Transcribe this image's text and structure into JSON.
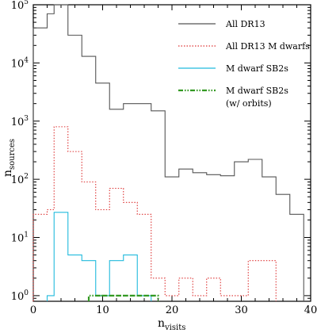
{
  "chart_data": {
    "type": "histogram",
    "xlabel": "n",
    "xlabel_sub": "visits",
    "ylabel": "n",
    "ylabel_sub": "sources",
    "xlim": [
      0,
      40
    ],
    "ylim": [
      0.8,
      100000
    ],
    "y_scale": "log",
    "x_ticks": [
      0,
      10,
      20,
      30,
      40
    ],
    "x_tick_labels": [
      "0",
      "10",
      "20",
      "30",
      "40"
    ],
    "y_ticks": [
      1,
      10,
      100,
      1000,
      10000,
      100000
    ],
    "y_tick_labels": [
      "10",
      "10",
      "10",
      "10",
      "10",
      "10"
    ],
    "y_tick_exponents": [
      "0",
      "1",
      "2",
      "3",
      "4",
      "5"
    ],
    "grid": false,
    "legend_position": "top-right",
    "series": [
      {
        "name": "All DR13",
        "style": "solid",
        "color": "#555555",
        "edges": [
          0,
          1,
          2,
          3,
          4,
          5,
          6,
          7,
          8,
          9,
          10,
          11,
          12,
          13,
          14,
          15,
          16,
          17,
          18,
          19,
          20,
          21,
          22,
          23,
          24,
          25,
          26,
          27,
          28,
          29,
          30,
          31,
          32,
          33,
          34,
          35,
          36,
          37,
          38,
          39
        ],
        "values": [
          40000,
          40000,
          70000,
          100000,
          100000,
          30000,
          30000,
          13000,
          13000,
          4500,
          4500,
          1600,
          1600,
          2000,
          2000,
          2000,
          2000,
          1500,
          1500,
          110,
          110,
          150,
          150,
          130,
          130,
          120,
          120,
          115,
          115,
          200,
          200,
          220,
          220,
          110,
          110,
          55,
          55,
          25,
          25
        ]
      },
      {
        "name": "All DR13 M dwarfs",
        "style": "dotted",
        "color": "#dd3333",
        "edges": [
          0,
          1,
          2,
          3,
          4,
          5,
          6,
          7,
          8,
          9,
          10,
          11,
          12,
          13,
          14,
          15,
          16,
          17,
          18,
          19,
          20,
          21,
          22,
          23,
          24,
          25,
          26,
          27,
          28,
          29,
          30,
          31,
          32,
          33,
          34,
          35
        ],
        "values": [
          25,
          25,
          30,
          800,
          800,
          300,
          300,
          90,
          90,
          30,
          30,
          70,
          70,
          40,
          40,
          25,
          25,
          2,
          2,
          1,
          1,
          2,
          2,
          1,
          1,
          2,
          2,
          1,
          1,
          1,
          1,
          4,
          4,
          4,
          4
        ]
      },
      {
        "name": "M dwarf SB2s",
        "style": "solid",
        "color": "#22bbdd",
        "edges": [
          2,
          3,
          4,
          5,
          6,
          7,
          8,
          9,
          10,
          11,
          12,
          13,
          14,
          15,
          16,
          17
        ],
        "values": [
          1,
          27,
          27,
          5,
          5,
          4,
          4,
          1,
          1,
          4,
          4,
          5,
          5,
          1,
          1
        ]
      },
      {
        "name": "M dwarf SB2s",
        "name_line2": "(w/ orbits)",
        "style": "dashdot",
        "color": "#339922",
        "edges": [
          8,
          9,
          10,
          11,
          12,
          13,
          14,
          15,
          16,
          17,
          18
        ],
        "values": [
          1,
          1,
          1,
          1,
          1,
          1,
          1,
          1,
          1,
          1
        ]
      }
    ]
  }
}
